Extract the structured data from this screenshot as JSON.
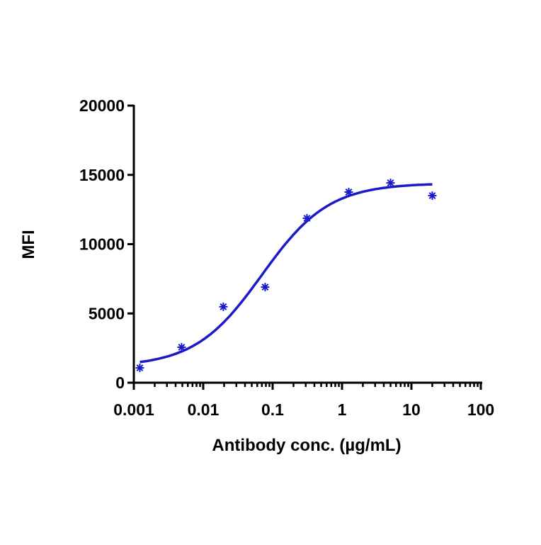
{
  "chart_data": {
    "type": "scatter",
    "title": "",
    "xlabel": "Antibody conc. (µg/mL)",
    "ylabel": "MFI",
    "xscale": "log",
    "xlim": [
      0.001,
      100
    ],
    "ylim": [
      0,
      20000
    ],
    "xticks": [
      "0.001",
      "0.01",
      "0.1",
      "1",
      "10",
      "100"
    ],
    "yticks": [
      "0",
      "5000",
      "10000",
      "15000",
      "20000"
    ],
    "color": "#1a1ac8",
    "series": [
      {
        "name": "MFI",
        "x": [
          0.00122,
          0.00488,
          0.0195,
          0.078,
          0.3125,
          1.25,
          5,
          20
        ],
        "y": [
          1070,
          2560,
          5480,
          6900,
          11870,
          13760,
          14420,
          13500
        ],
        "marker": "asterisk"
      }
    ],
    "fit": {
      "model": "4PL",
      "bottom": 1150,
      "top": 14400,
      "ec50": 0.07,
      "hill": 0.9,
      "x_range": [
        0.00122,
        20
      ]
    }
  }
}
